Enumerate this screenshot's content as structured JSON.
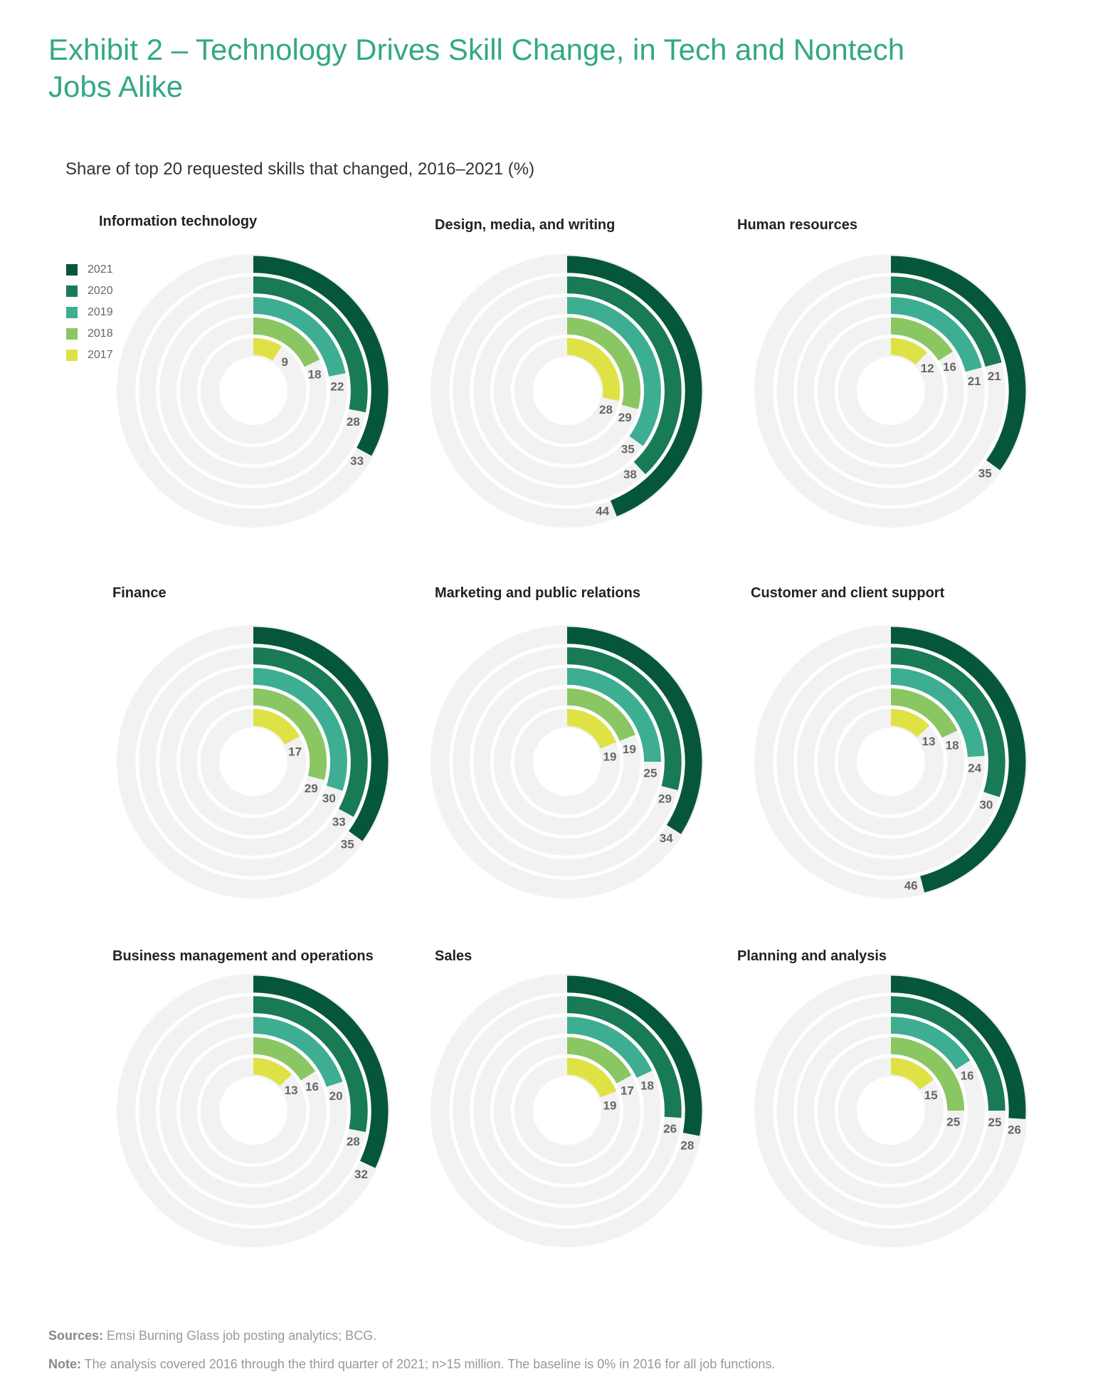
{
  "title": "Exhibit 2 – Technology Drives Skill Change, in Tech and Nontech Jobs Alike",
  "subtitle": "Share of top 20 requested skills that changed, 2016–2021 (%)",
  "footer": {
    "sources_label": "Sources:",
    "sources_text": " Emsi Burning Glass job posting analytics; BCG.",
    "note_label": "Note:",
    "note_text": " The analysis covered 2016 through the third quarter of 2021; n>15 million. The baseline is 0% in 2016 for all job functions."
  },
  "colors": {
    "2021": "#06573a",
    "2020": "#197a56",
    "2019": "#3eae93",
    "2018": "#8ac763",
    "2017": "#dfe244",
    "track": "#f2f2f2",
    "title": "#32a886"
  },
  "chart_data": {
    "type": "radial-bar",
    "title": "Share of top 20 requested skills that changed, 2016–2021 (%)",
    "scale_max": 100,
    "legend": [
      "2021",
      "2020",
      "2019",
      "2018",
      "2017"
    ],
    "legend_position": "top-left",
    "panels": [
      {
        "name": "Information technology",
        "values": {
          "2017": 9,
          "2018": 18,
          "2019": 22,
          "2020": 28,
          "2021": 33
        }
      },
      {
        "name": "Design, media, and writing",
        "values": {
          "2017": 28,
          "2018": 29,
          "2019": 35,
          "2020": 38,
          "2021": 44
        }
      },
      {
        "name": "Human resources",
        "values": {
          "2017": 12,
          "2018": 16,
          "2019": 21,
          "2020": 21,
          "2021": 35
        }
      },
      {
        "name": "Finance",
        "values": {
          "2017": 17,
          "2018": 29,
          "2019": 30,
          "2020": 33,
          "2021": 35
        }
      },
      {
        "name": "Marketing and public relations",
        "values": {
          "2017": 19,
          "2018": 19,
          "2019": 25,
          "2020": 29,
          "2021": 34
        }
      },
      {
        "name": "Customer and client support",
        "values": {
          "2017": 13,
          "2018": 18,
          "2019": 24,
          "2020": 30,
          "2021": 46
        }
      },
      {
        "name": "Business management and operations",
        "values": {
          "2017": 13,
          "2018": 16,
          "2019": 20,
          "2020": 28,
          "2021": 32
        }
      },
      {
        "name": "Sales",
        "values": {
          "2017": 19,
          "2018": 17,
          "2019": 18,
          "2020": 26,
          "2021": 28
        }
      },
      {
        "name": "Planning and analysis",
        "values": {
          "2017": 15,
          "2018": 25,
          "2019": 16,
          "2020": 25,
          "2021": 26
        }
      }
    ]
  }
}
